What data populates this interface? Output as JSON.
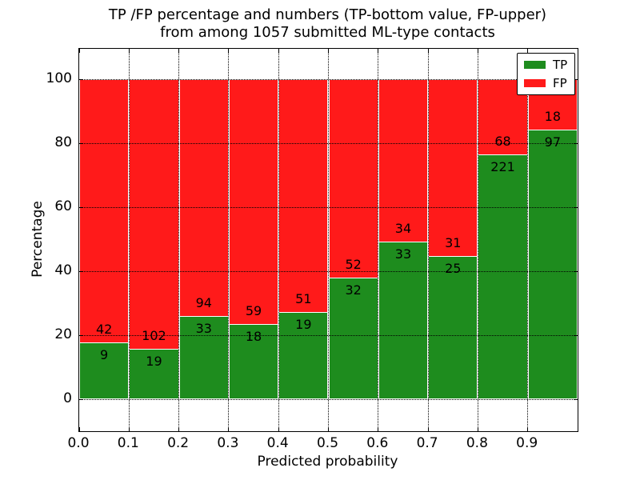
{
  "figure": {
    "title_line1": "TP /FP percentage and numbers (TP-bottom value, FP-upper)",
    "title_line2": "from among 1057 submitted ML-type contacts",
    "xlabel": "Predicted probability",
    "ylabel": "Percentage"
  },
  "legend": {
    "items": [
      {
        "label": "TP",
        "color": "#1e8c1e"
      },
      {
        "label": "FP",
        "color": "#ff1a1a"
      }
    ]
  },
  "chart_data": {
    "type": "bar",
    "stacked": true,
    "normalized_to_percent": true,
    "title": "TP /FP percentage and numbers (TP-bottom value, FP-upper) from among 1057 submitted ML-type contacts",
    "xlabel": "Predicted probability",
    "ylabel": "Percentage",
    "total_contacts": 1057,
    "categories": [
      "0.0-0.1",
      "0.1-0.2",
      "0.2-0.3",
      "0.3-0.4",
      "0.4-0.5",
      "0.5-0.6",
      "0.6-0.7",
      "0.7-0.8",
      "0.8-0.9",
      "0.9-1.0"
    ],
    "bin_width": 0.1,
    "series": [
      {
        "name": "TP",
        "color": "#1e8c1e",
        "values": [
          9,
          19,
          33,
          18,
          19,
          32,
          33,
          25,
          221,
          97
        ]
      },
      {
        "name": "FP",
        "color": "#ff1a1a",
        "values": [
          42,
          102,
          94,
          59,
          51,
          52,
          34,
          31,
          68,
          18
        ]
      }
    ],
    "x_tick_labels": [
      "0.0",
      "0.1",
      "0.2",
      "0.3",
      "0.4",
      "0.5",
      "0.6",
      "0.7",
      "0.8",
      "0.9"
    ],
    "y_ticks": [
      0,
      20,
      40,
      60,
      80,
      100
    ],
    "xlim": [
      0.0,
      1.0
    ],
    "ylim": [
      -10,
      110
    ],
    "grid": "dotted black, horizontal and vertical",
    "bar_edge_color": "#ffffff",
    "legend_position": "upper right"
  }
}
